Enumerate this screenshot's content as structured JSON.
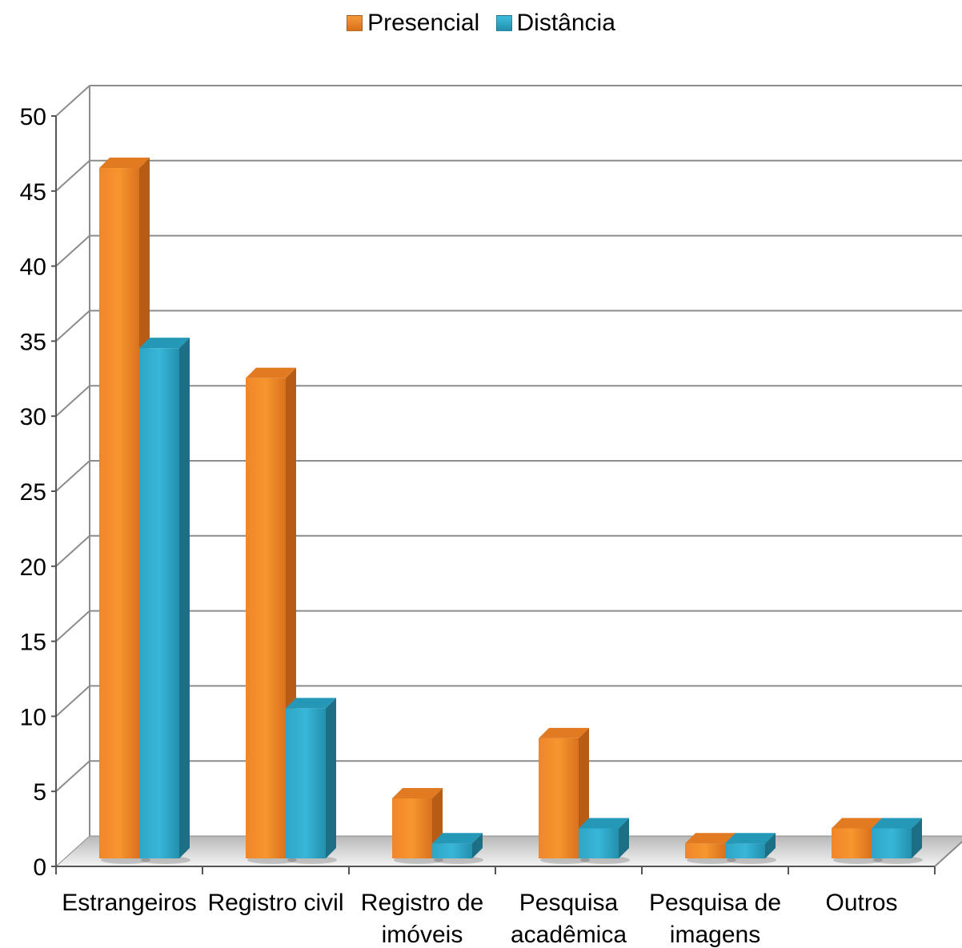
{
  "chart_data": {
    "type": "bar",
    "title": "",
    "xlabel": "",
    "ylabel": "",
    "categories": [
      [
        "Estrangeiros"
      ],
      [
        "Registro civil"
      ],
      [
        "Registro de",
        "imóveis"
      ],
      [
        "Pesquisa",
        "acadêmica"
      ],
      [
        "Pesquisa de",
        "imagens"
      ],
      [
        "Outros"
      ]
    ],
    "series": [
      {
        "name": "Presencial",
        "values": [
          46,
          32,
          4,
          8,
          1,
          2
        ],
        "color": "#E87E1E"
      },
      {
        "name": "Distância",
        "values": [
          34,
          10,
          1,
          2,
          1,
          2
        ],
        "color": "#2AA6C8"
      }
    ],
    "ylim": [
      0,
      50
    ],
    "yticks": [
      0,
      5,
      10,
      15,
      20,
      25,
      30,
      35,
      40,
      45,
      50
    ],
    "grid": true,
    "legend_position": "top-center",
    "style": "3d-clustered-column"
  }
}
